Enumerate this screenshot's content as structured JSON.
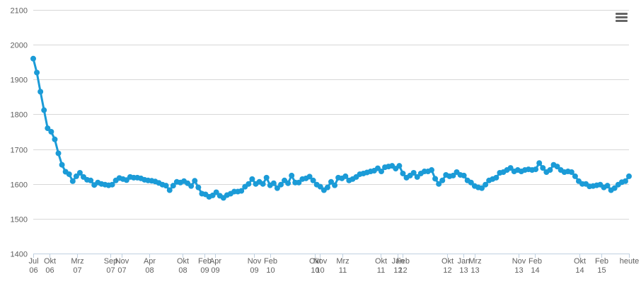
{
  "chart_data": {
    "type": "line",
    "title": "",
    "xlabel": "",
    "ylabel": "",
    "ylim": [
      1400,
      2100
    ],
    "yticks": [
      1400,
      1500,
      1600,
      1700,
      1800,
      1900,
      2000,
      2100
    ],
    "grid": true,
    "legend": "none",
    "color": "#1b9bd7",
    "xticks": [
      {
        "label": [
          "Jul",
          "06"
        ],
        "at": 0
      },
      {
        "label": [
          "Okt",
          "06"
        ],
        "at": 3
      },
      {
        "label": [
          "Mrz",
          "07"
        ],
        "at": 8
      },
      {
        "label": [
          "Sep",
          "07"
        ],
        "at": 14
      },
      {
        "label": [
          "Nov",
          "07"
        ],
        "at": 16
      },
      {
        "label": [
          "Apr",
          "08"
        ],
        "at": 21
      },
      {
        "label": [
          "Okt",
          "08"
        ],
        "at": 27
      },
      {
        "label": [
          "Feb",
          "09"
        ],
        "at": 31
      },
      {
        "label": [
          "Apr",
          "09"
        ],
        "at": 33
      },
      {
        "label": [
          "Nov",
          "09"
        ],
        "at": 40
      },
      {
        "label": [
          "Feb",
          "10"
        ],
        "at": 43
      },
      {
        "label": [
          "Okt",
          "10"
        ],
        "at": 51
      },
      {
        "label": [
          "Nov",
          "10"
        ],
        "at": 52
      },
      {
        "label": [
          "Mrz",
          "11"
        ],
        "at": 56
      },
      {
        "label": [
          "Okt",
          "11"
        ],
        "at": 63
      },
      {
        "label": [
          "Jan",
          "12"
        ],
        "at": 66
      },
      {
        "label": [
          "Feb",
          "12"
        ],
        "at": 67
      },
      {
        "label": [
          "Okt",
          "12"
        ],
        "at": 75
      },
      {
        "label": [
          "Jan",
          "13"
        ],
        "at": 78
      },
      {
        "label": [
          "Mrz",
          "13"
        ],
        "at": 80
      },
      {
        "label": [
          "Nov",
          "13"
        ],
        "at": 88
      },
      {
        "label": [
          "Feb",
          "14"
        ],
        "at": 91
      },
      {
        "label": [
          "Okt",
          "14"
        ],
        "at": 99
      },
      {
        "label": [
          "Feb",
          "15"
        ],
        "at": 103
      },
      {
        "label": [
          "heute"
        ],
        "at": 108
      }
    ],
    "series": [
      {
        "values": [
          1960,
          1920,
          1865,
          1812,
          1760,
          1750,
          1728,
          1688,
          1655,
          1635,
          1628,
          1608,
          1622,
          1632,
          1620,
          1612,
          1610,
          1597,
          1604,
          1600,
          1598,
          1596,
          1598,
          1610,
          1617,
          1614,
          1611,
          1620,
          1618,
          1618,
          1616,
          1612,
          1610,
          1609,
          1607,
          1603,
          1598,
          1595,
          1582,
          1595,
          1606,
          1604,
          1608,
          1602,
          1594,
          1609,
          1590,
          1572,
          1570,
          1563,
          1567,
          1576,
          1566,
          1560,
          1568,
          1572,
          1578,
          1578,
          1580,
          1592,
          1600,
          1614,
          1600,
          1606,
          1600,
          1618,
          1596,
          1602,
          1588,
          1598,
          1610,
          1602,
          1624,
          1604,
          1604,
          1614,
          1616,
          1621,
          1610,
          1598,
          1592,
          1582,
          1590,
          1606,
          1596,
          1618,
          1616,
          1622,
          1610,
          1614,
          1620,
          1628,
          1630,
          1633,
          1636,
          1638,
          1645,
          1636,
          1648,
          1650,
          1652,
          1644,
          1652,
          1630,
          1618,
          1624,
          1632,
          1620,
          1630,
          1636,
          1636,
          1640,
          1615,
          1600,
          1610,
          1626,
          1622,
          1624,
          1634,
          1626,
          1624,
          1610,
          1604,
          1594,
          1590,
          1588,
          1598,
          1610,
          1614,
          1618,
          1632,
          1634,
          1640,
          1646,
          1636,
          1640,
          1636,
          1640,
          1642,
          1640,
          1642,
          1660,
          1646,
          1634,
          1640,
          1655,
          1650,
          1640,
          1634,
          1636,
          1634,
          1622,
          1608,
          1600,
          1600,
          1593,
          1594,
          1596,
          1598,
          1590,
          1595,
          1582,
          1588,
          1598,
          1605,
          1608,
          1622
        ]
      }
    ]
  },
  "toolbar": {
    "menu_icon": "hamburger-menu-icon"
  }
}
